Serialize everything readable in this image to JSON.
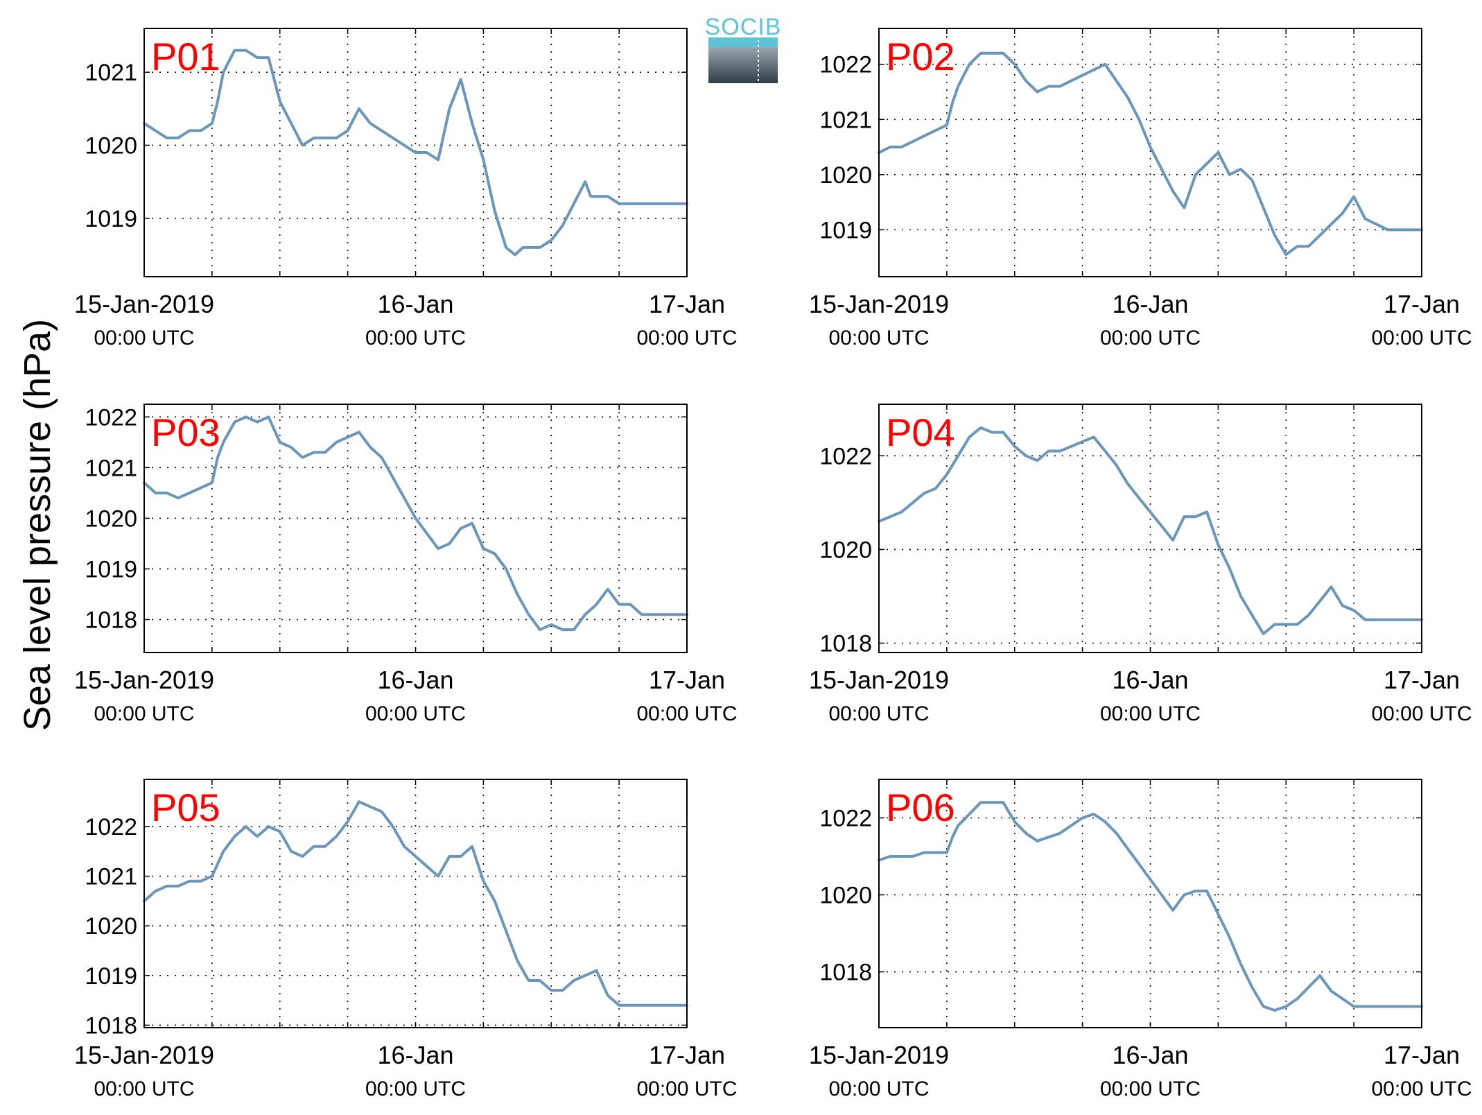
{
  "figure": {
    "ylabel": "Sea level pressure (hPa)",
    "logo_text": "SOCIB",
    "line_color": "#6a96bb",
    "label_color": "#ff0000"
  },
  "chart_data": [
    {
      "type": "line",
      "label": "P01",
      "x_range": [
        0,
        48
      ],
      "ylim": [
        1018.2,
        1021.6
      ],
      "yticks": [
        1019,
        1020,
        1021
      ],
      "xticks": [
        {
          "main": "15-Jan-2019",
          "sub": "00:00 UTC"
        },
        {
          "main": "16-Jan",
          "sub": "00:00 UTC"
        },
        {
          "main": "17-Jan",
          "sub": "00:00 UTC"
        }
      ],
      "grid": true,
      "series": [
        {
          "x": [
            0,
            1,
            2,
            3,
            4,
            5,
            6,
            6.5,
            7,
            8,
            9,
            10,
            11,
            12,
            13,
            14,
            15,
            16,
            17,
            18,
            19,
            20,
            21,
            22,
            23,
            24,
            25,
            26,
            27,
            28,
            29,
            30,
            31,
            32,
            32.8,
            33.5,
            35,
            36,
            37,
            38,
            39,
            39.5,
            40,
            41,
            42,
            43,
            44,
            45,
            45.5,
            46,
            47,
            48
          ],
          "y": [
            1020.3,
            1020.2,
            1020.1,
            1020.1,
            1020.2,
            1020.2,
            1020.3,
            1020.6,
            1021.0,
            1021.3,
            1021.3,
            1021.2,
            1021.2,
            1020.6,
            1020.3,
            1020.0,
            1020.1,
            1020.1,
            1020.1,
            1020.2,
            1020.5,
            1020.3,
            1020.2,
            1020.1,
            1020.0,
            1019.9,
            1019.9,
            1019.8,
            1020.5,
            1020.9,
            1020.3,
            1019.8,
            1019.1,
            1018.6,
            1018.5,
            1018.6,
            1018.6,
            1018.7,
            1018.9,
            1019.2,
            1019.5,
            1019.3,
            1019.3,
            1019.3,
            1019.2,
            1019.2,
            1019.2,
            1019.2,
            1019.2,
            1019.2,
            1019.2,
            1019.2
          ]
        }
      ]
    },
    {
      "type": "line",
      "label": "P02",
      "x_range": [
        0,
        48
      ],
      "ylim": [
        1018.15,
        1022.65
      ],
      "yticks": [
        1019,
        1020,
        1021,
        1022
      ],
      "xticks": [
        {
          "main": "15-Jan-2019",
          "sub": "00:00 UTC"
        },
        {
          "main": "16-Jan",
          "sub": "00:00 UTC"
        },
        {
          "main": "17-Jan",
          "sub": "00:00 UTC"
        }
      ],
      "grid": true,
      "series": [
        {
          "x": [
            0,
            1,
            2,
            3,
            4,
            5,
            6,
            6.5,
            7,
            8,
            9,
            10,
            11,
            12,
            13,
            14,
            15,
            16,
            17,
            18,
            19,
            20,
            21,
            22,
            23,
            24,
            25,
            26,
            27,
            28,
            29,
            30,
            31,
            32,
            33,
            34,
            35,
            36,
            37,
            38,
            39,
            40,
            41,
            42,
            43,
            44,
            45,
            46,
            47,
            48
          ],
          "y": [
            1020.4,
            1020.5,
            1020.5,
            1020.6,
            1020.7,
            1020.8,
            1020.9,
            1021.3,
            1021.6,
            1022.0,
            1022.2,
            1022.2,
            1022.2,
            1022.0,
            1021.7,
            1021.5,
            1021.6,
            1021.6,
            1021.7,
            1021.8,
            1021.9,
            1022.0,
            1021.7,
            1021.4,
            1021.0,
            1020.5,
            1020.1,
            1019.7,
            1019.4,
            1020.0,
            1020.2,
            1020.4,
            1020.0,
            1020.1,
            1019.9,
            1019.4,
            1018.9,
            1018.55,
            1018.7,
            1018.7,
            1018.9,
            1019.1,
            1019.3,
            1019.6,
            1019.2,
            1019.1,
            1019.0,
            1019.0,
            1019.0,
            1019.0
          ]
        }
      ]
    },
    {
      "type": "line",
      "label": "P03",
      "x_range": [
        0,
        48
      ],
      "ylim": [
        1017.35,
        1022.25
      ],
      "yticks": [
        1018,
        1019,
        1020,
        1021,
        1022
      ],
      "xticks": [
        {
          "main": "15-Jan-2019",
          "sub": "00:00 UTC"
        },
        {
          "main": "16-Jan",
          "sub": "00:00 UTC"
        },
        {
          "main": "17-Jan",
          "sub": "00:00 UTC"
        }
      ],
      "grid": true,
      "series": [
        {
          "x": [
            0,
            1,
            2,
            3,
            4,
            5,
            6,
            6.5,
            7,
            8,
            9,
            10,
            11,
            12,
            13,
            14,
            15,
            16,
            17,
            18,
            19,
            20,
            21,
            22,
            23,
            24,
            25,
            26,
            27,
            28,
            29,
            30,
            31,
            32,
            33,
            34,
            35,
            36,
            37,
            38,
            39,
            40,
            41,
            42,
            43,
            44,
            45,
            46,
            47,
            48
          ],
          "y": [
            1020.7,
            1020.5,
            1020.5,
            1020.4,
            1020.5,
            1020.6,
            1020.7,
            1021.2,
            1021.5,
            1021.9,
            1022.0,
            1021.9,
            1022.0,
            1021.5,
            1021.4,
            1021.2,
            1021.3,
            1021.3,
            1021.5,
            1021.6,
            1021.7,
            1021.4,
            1021.2,
            1020.8,
            1020.4,
            1020.0,
            1019.7,
            1019.4,
            1019.5,
            1019.8,
            1019.9,
            1019.4,
            1019.3,
            1019.0,
            1018.5,
            1018.1,
            1017.8,
            1017.9,
            1017.8,
            1017.8,
            1018.1,
            1018.3,
            1018.6,
            1018.3,
            1018.3,
            1018.1,
            1018.1,
            1018.1,
            1018.1,
            1018.1
          ]
        }
      ]
    },
    {
      "type": "line",
      "label": "P04",
      "x_range": [
        0,
        48
      ],
      "ylim": [
        1017.8,
        1023.1
      ],
      "yticks": [
        1018,
        1020,
        1022
      ],
      "xticks": [
        {
          "main": "15-Jan-2019",
          "sub": "00:00 UTC"
        },
        {
          "main": "16-Jan",
          "sub": "00:00 UTC"
        },
        {
          "main": "17-Jan",
          "sub": "00:00 UTC"
        }
      ],
      "grid": true,
      "series": [
        {
          "x": [
            0,
            1,
            2,
            3,
            4,
            5,
            6,
            7,
            8,
            9,
            10,
            11,
            12,
            13,
            14,
            15,
            16,
            17,
            18,
            19,
            20,
            21,
            22,
            23,
            24,
            25,
            26,
            27,
            28,
            29,
            30,
            31,
            32,
            33,
            34,
            35,
            36,
            37,
            38,
            39,
            40,
            41,
            42,
            43,
            44,
            45,
            46,
            47,
            48
          ],
          "y": [
            1020.6,
            1020.7,
            1020.8,
            1021.0,
            1021.2,
            1021.3,
            1021.6,
            1022.0,
            1022.4,
            1022.6,
            1022.5,
            1022.5,
            1022.2,
            1022.0,
            1021.9,
            1022.1,
            1022.1,
            1022.2,
            1022.3,
            1022.4,
            1022.1,
            1021.8,
            1021.4,
            1021.1,
            1020.8,
            1020.5,
            1020.2,
            1020.7,
            1020.7,
            1020.8,
            1020.1,
            1019.6,
            1019.0,
            1018.6,
            1018.2,
            1018.4,
            1018.4,
            1018.4,
            1018.6,
            1018.9,
            1019.2,
            1018.8,
            1018.7,
            1018.5,
            1018.5,
            1018.5,
            1018.5,
            1018.5,
            1018.5
          ]
        }
      ]
    },
    {
      "type": "line",
      "label": "P05",
      "x_range": [
        0,
        48
      ],
      "ylim": [
        1017.95,
        1022.95
      ],
      "yticks": [
        1018,
        1019,
        1020,
        1021,
        1022
      ],
      "xticks": [
        {
          "main": "15-Jan-2019",
          "sub": "00:00 UTC"
        },
        {
          "main": "16-Jan",
          "sub": "00:00 UTC"
        },
        {
          "main": "17-Jan",
          "sub": "00:00 UTC"
        }
      ],
      "grid": true,
      "series": [
        {
          "x": [
            0,
            1,
            2,
            3,
            4,
            5,
            6,
            7,
            8,
            9,
            10,
            11,
            12,
            13,
            14,
            15,
            16,
            17,
            18,
            19,
            20,
            21,
            22,
            23,
            24,
            25,
            26,
            27,
            28,
            29,
            30,
            31,
            32,
            33,
            34,
            35,
            36,
            37,
            38,
            39,
            40,
            41,
            42,
            43,
            44,
            45,
            46,
            47,
            48
          ],
          "y": [
            1020.5,
            1020.7,
            1020.8,
            1020.8,
            1020.9,
            1020.9,
            1021.0,
            1021.5,
            1021.8,
            1022.0,
            1021.8,
            1022.0,
            1021.9,
            1021.5,
            1021.4,
            1021.6,
            1021.6,
            1021.8,
            1022.1,
            1022.5,
            1022.4,
            1022.3,
            1022.0,
            1021.6,
            1021.4,
            1021.2,
            1021.0,
            1021.4,
            1021.4,
            1021.6,
            1020.9,
            1020.5,
            1019.9,
            1019.3,
            1018.9,
            1018.9,
            1018.7,
            1018.7,
            1018.9,
            1019.0,
            1019.1,
            1018.6,
            1018.4,
            1018.4,
            1018.4,
            1018.4,
            1018.4,
            1018.4,
            1018.4
          ]
        }
      ]
    },
    {
      "type": "line",
      "label": "P06",
      "x_range": [
        0,
        48
      ],
      "ylim": [
        1016.55,
        1023.0
      ],
      "yticks": [
        1018,
        1020,
        1022
      ],
      "xticks": [
        {
          "main": "15-Jan-2019",
          "sub": "00:00 UTC"
        },
        {
          "main": "16-Jan",
          "sub": "00:00 UTC"
        },
        {
          "main": "17-Jan",
          "sub": "00:00 UTC"
        }
      ],
      "grid": true,
      "series": [
        {
          "x": [
            0,
            1,
            2,
            3,
            4,
            5,
            6,
            6.5,
            7,
            8,
            9,
            10,
            11,
            12,
            13,
            14,
            15,
            16,
            17,
            18,
            19,
            20,
            21,
            22,
            23,
            24,
            25,
            26,
            27,
            28,
            29,
            30,
            31,
            32,
            33,
            34,
            35,
            36,
            37,
            38,
            39,
            40,
            41,
            42,
            43,
            44,
            45,
            46,
            47,
            48
          ],
          "y": [
            1020.9,
            1021.0,
            1021.0,
            1021.0,
            1021.1,
            1021.1,
            1021.1,
            1021.5,
            1021.8,
            1022.1,
            1022.4,
            1022.4,
            1022.4,
            1021.9,
            1021.6,
            1021.4,
            1021.5,
            1021.6,
            1021.8,
            1022.0,
            1022.1,
            1021.9,
            1021.6,
            1021.2,
            1020.8,
            1020.4,
            1020.0,
            1019.6,
            1020.0,
            1020.1,
            1020.1,
            1019.5,
            1018.9,
            1018.2,
            1017.6,
            1017.1,
            1017.0,
            1017.1,
            1017.3,
            1017.6,
            1017.9,
            1017.5,
            1017.3,
            1017.1,
            1017.1,
            1017.1,
            1017.1,
            1017.1,
            1017.1,
            1017.1
          ]
        }
      ]
    }
  ]
}
